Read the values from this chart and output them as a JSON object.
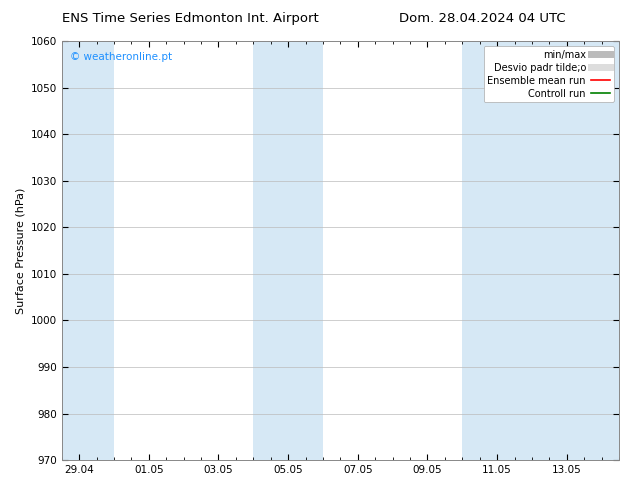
{
  "title_left": "ENS Time Series Edmonton Int. Airport",
  "title_right": "Dom. 28.04.2024 04 UTC",
  "ylabel": "Surface Pressure (hPa)",
  "watermark": "© weatheronline.pt",
  "watermark_color": "#1E90FF",
  "ylim": [
    970,
    1060
  ],
  "yticks": [
    970,
    980,
    990,
    1000,
    1010,
    1020,
    1030,
    1040,
    1050,
    1060
  ],
  "xtick_labels": [
    "29.04",
    "01.05",
    "03.05",
    "05.05",
    "07.05",
    "09.05",
    "11.05",
    "13.05"
  ],
  "xtick_positions": [
    0,
    2,
    4,
    6,
    8,
    10,
    12,
    14
  ],
  "xlim": [
    -0.5,
    15.5
  ],
  "shaded_bands": [
    {
      "x_start": -0.5,
      "x_end": 1.0,
      "color": "#D6E8F5"
    },
    {
      "x_start": 5.0,
      "x_end": 7.0,
      "color": "#D6E8F5"
    },
    {
      "x_start": 11.0,
      "x_end": 15.5,
      "color": "#D6E8F5"
    }
  ],
  "legend_entries": [
    {
      "label": "min/max",
      "color": "#BBBBBB",
      "lw": 5
    },
    {
      "label": "Desvio padr tilde;o",
      "color": "#DDDDDD",
      "lw": 5
    },
    {
      "label": "Ensemble mean run",
      "color": "red",
      "lw": 1.2
    },
    {
      "label": "Controll run",
      "color": "green",
      "lw": 1.2
    }
  ],
  "background_color": "#FFFFFF",
  "plot_bg_color": "#FFFFFF",
  "grid_color": "#BBBBBB",
  "title_fontsize": 9.5,
  "label_fontsize": 8,
  "tick_fontsize": 7.5,
  "watermark_fontsize": 7.5,
  "legend_fontsize": 7
}
